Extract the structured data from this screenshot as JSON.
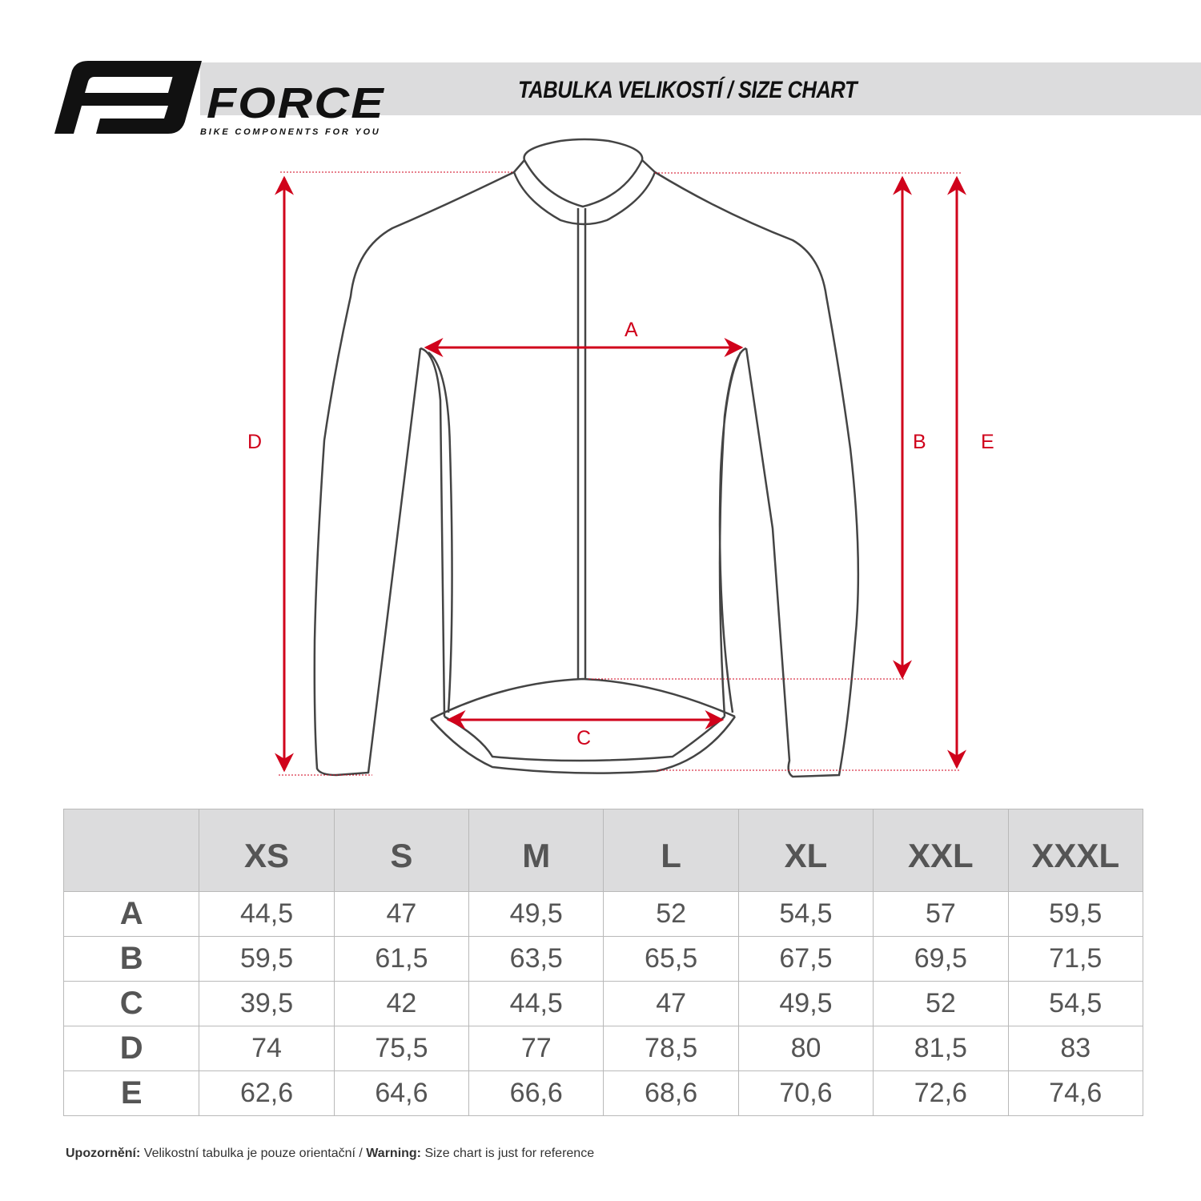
{
  "brand": {
    "name": "FORCE",
    "tagline": "BIKE COMPONENTS FOR YOU"
  },
  "header": {
    "title": "TABULKA VELIKOSTÍ / SIZE CHART"
  },
  "diagram": {
    "labels": {
      "A": "A",
      "B": "B",
      "C": "C",
      "D": "D",
      "E": "E"
    },
    "accent_color": "#d0021b"
  },
  "table": {
    "columns": [
      "XS",
      "S",
      "M",
      "L",
      "XL",
      "XXL",
      "XXXL"
    ],
    "rows": [
      {
        "label": "A",
        "values": [
          "44,5",
          "47",
          "49,5",
          "52",
          "54,5",
          "57",
          "59,5"
        ]
      },
      {
        "label": "B",
        "values": [
          "59,5",
          "61,5",
          "63,5",
          "65,5",
          "67,5",
          "69,5",
          "71,5"
        ]
      },
      {
        "label": "C",
        "values": [
          "39,5",
          "42",
          "44,5",
          "47",
          "49,5",
          "52",
          "54,5"
        ]
      },
      {
        "label": "D",
        "values": [
          "74",
          "75,5",
          "77",
          "78,5",
          "80",
          "81,5",
          "83"
        ]
      },
      {
        "label": "E",
        "values": [
          "62,6",
          "64,6",
          "66,6",
          "68,6",
          "70,6",
          "72,6",
          "74,6"
        ]
      }
    ]
  },
  "footer": {
    "warning_cz_label": "Upozornění:",
    "warning_cz_text": " Velikostní tabulka je pouze orientační / ",
    "warning_en_label": "Warning:",
    "warning_en_text": " Size chart is just for reference"
  }
}
